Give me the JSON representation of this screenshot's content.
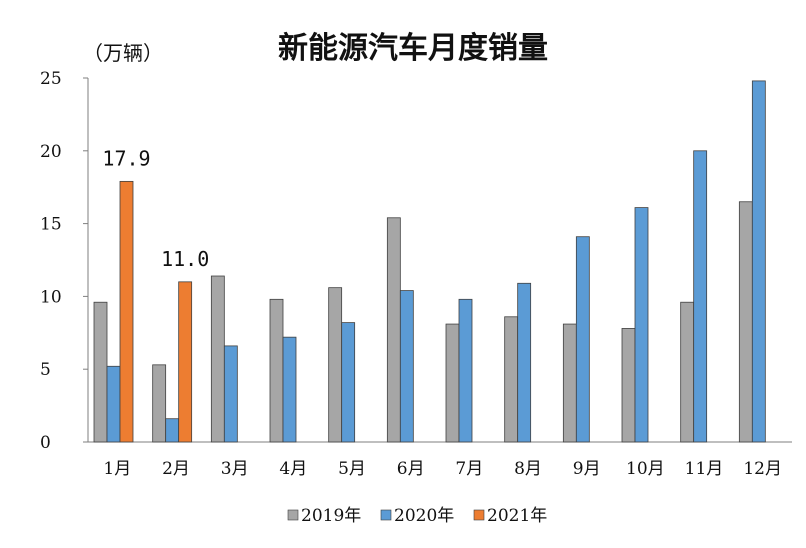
{
  "chart_data": {
    "type": "bar",
    "title": "新能源汽车月度销量",
    "unit_label": "（万辆）",
    "categories": [
      "1月",
      "2月",
      "3月",
      "4月",
      "5月",
      "6月",
      "7月",
      "8月",
      "9月",
      "10月",
      "11月",
      "12月"
    ],
    "series": [
      {
        "name": "2019年",
        "color": "#a6a6a6",
        "values": [
          9.6,
          5.3,
          11.4,
          9.8,
          10.6,
          15.4,
          8.1,
          8.6,
          8.1,
          7.8,
          9.6,
          16.5
        ]
      },
      {
        "name": "2020年",
        "color": "#5b9bd5",
        "values": [
          5.2,
          1.6,
          6.6,
          7.2,
          8.2,
          10.4,
          9.8,
          10.9,
          14.1,
          16.1,
          20.0,
          24.8
        ]
      },
      {
        "name": "2021年",
        "color": "#ed7d31",
        "values": [
          17.9,
          11.0,
          null,
          null,
          null,
          null,
          null,
          null,
          null,
          null,
          null,
          null
        ],
        "data_labels": [
          "17.9",
          "11.0",
          null,
          null,
          null,
          null,
          null,
          null,
          null,
          null,
          null,
          null
        ]
      }
    ],
    "ylim": [
      0,
      25
    ],
    "yticks": [
      0,
      5,
      10,
      15,
      20,
      25
    ],
    "xlabel": "",
    "ylabel": "",
    "grid": false,
    "legend_position": "bottom"
  }
}
